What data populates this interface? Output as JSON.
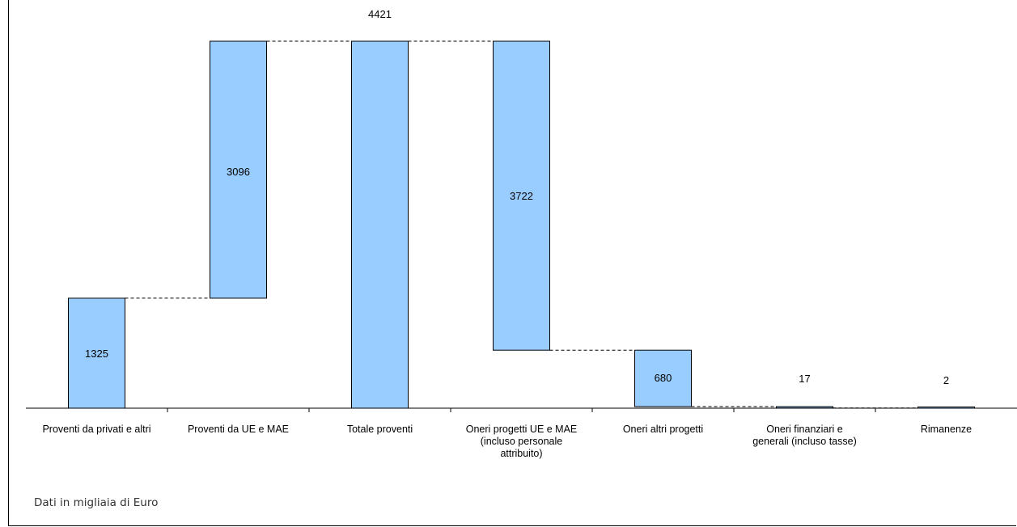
{
  "chart_data": {
    "type": "bar",
    "subtype": "waterfall",
    "categories": [
      [
        "Proventi da privati e altri"
      ],
      [
        "Proventi da UE e MAE"
      ],
      [
        "Totale proventi"
      ],
      [
        "Oneri progetti UE e MAE",
        "(incluso personale",
        "attribuito)"
      ],
      [
        "Oneri altri progetti"
      ],
      [
        "Oneri finanziari e",
        "generali (incluso tasse)"
      ],
      [
        "Rimanenze"
      ]
    ],
    "series": [
      {
        "values": [
          1325,
          3096,
          4421,
          3722,
          680,
          17,
          2
        ]
      }
    ],
    "waterfall_ranges": [
      [
        0,
        1325
      ],
      [
        1325,
        4421
      ],
      [
        0,
        4421
      ],
      [
        699,
        4421
      ],
      [
        19,
        699
      ],
      [
        2,
        19
      ],
      [
        0,
        2
      ]
    ],
    "ylim": [
      0,
      4800
    ],
    "grid": false,
    "legend": "none",
    "bar_color": "#99ccff",
    "bar_border": "#000000"
  },
  "footnote": "Dati in migliaia di Euro"
}
